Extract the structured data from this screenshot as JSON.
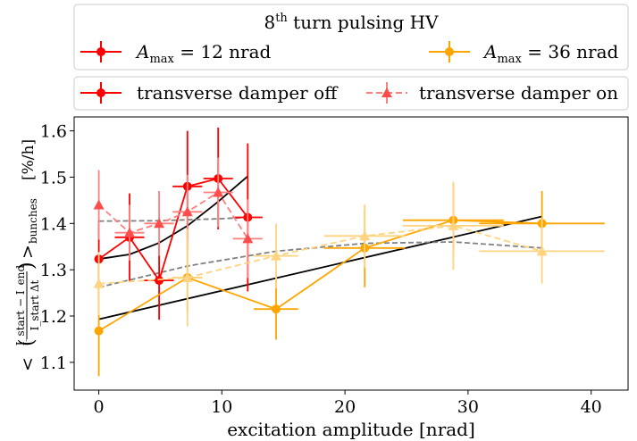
{
  "legend1": {
    "title": "8th turn pulsing HV",
    "title_base": "8",
    "title_sup": "th",
    "title_rest": " turn pulsing HV",
    "entries": [
      {
        "label": "A_max = 12 nrad",
        "sym": "A",
        "sub": "max",
        "rest": " = 12 nrad",
        "color": "#ff0000"
      },
      {
        "label": "A_max = 36 nrad",
        "sym": "A",
        "sub": "max",
        "rest": " = 36 nrad",
        "color": "#ffa500"
      }
    ]
  },
  "legend2": {
    "entries": [
      {
        "label": "transverse damper off",
        "style": "solid-circle"
      },
      {
        "label": "transverse damper on",
        "style": "dashed-triangle"
      }
    ]
  },
  "chart_data": {
    "type": "scatter",
    "xlabel": "excitation amplitude [nrad]",
    "ylabel": "< ((I_start − I_end)/(I_start Δt)) >_bunches [%/h]",
    "ylabel_parts": {
      "lt": "<",
      "num": "I_start − I_end",
      "den": "I_start Δt",
      "gt": ">",
      "sub": "bunches",
      "unit": "[%/h]"
    },
    "xlim": [
      -2,
      43
    ],
    "ylim": [
      1.04,
      1.63
    ],
    "xticks": [
      0,
      10,
      20,
      30,
      40
    ],
    "yticks": [
      1.1,
      1.2,
      1.3,
      1.4,
      1.5,
      1.6
    ],
    "grid": false,
    "colors": {
      "red": "#ff0000",
      "red_light": "#ff7f7f",
      "orange": "#ffa500",
      "orange_light": "#ffd37f",
      "fit_solid": "#000000",
      "fit_dashed": "#808080"
    },
    "series": [
      {
        "name": "A_max = 12 nrad, transverse damper off",
        "color": "#ff0000",
        "marker": "circle",
        "line": "solid",
        "points": [
          {
            "x": 0,
            "y": 1.323,
            "xerr": 0,
            "yerr": 0.085
          },
          {
            "x": 2.5,
            "y": 1.37,
            "xerr": 1.2,
            "yerr": 0.095
          },
          {
            "x": 4.9,
            "y": 1.277,
            "xerr": 1.2,
            "yerr": 0.085
          },
          {
            "x": 7.2,
            "y": 1.48,
            "xerr": 1.2,
            "yerr": 0.12
          },
          {
            "x": 9.7,
            "y": 1.497,
            "xerr": 1.2,
            "yerr": 0.11
          },
          {
            "x": 12.1,
            "y": 1.413,
            "xerr": 1.2,
            "yerr": 0.16
          }
        ]
      },
      {
        "name": "A_max = 12 nrad, transverse damper on",
        "color": "#ff7f7f",
        "marker": "triangle",
        "line": "dashed",
        "points": [
          {
            "x": 0,
            "y": 1.44,
            "xerr": 0,
            "yerr": 0.075
          },
          {
            "x": 2.5,
            "y": 1.38,
            "xerr": 1.2,
            "yerr": 0.06
          },
          {
            "x": 4.9,
            "y": 1.4,
            "xerr": 1.2,
            "yerr": 0.07
          },
          {
            "x": 7.2,
            "y": 1.425,
            "xerr": 1.2,
            "yerr": 0.08
          },
          {
            "x": 9.7,
            "y": 1.467,
            "xerr": 1.2,
            "yerr": 0.075
          },
          {
            "x": 12.1,
            "y": 1.367,
            "xerr": 1.2,
            "yerr": 0.085
          }
        ]
      },
      {
        "name": "A_max = 36 nrad, transverse damper off",
        "color": "#ffa500",
        "marker": "circle",
        "line": "solid",
        "points": [
          {
            "x": 0,
            "y": 1.168,
            "xerr": 0,
            "yerr": 0.098
          },
          {
            "x": 7.2,
            "y": 1.283,
            "xerr": 1.2,
            "yerr": 0.075
          },
          {
            "x": 14.4,
            "y": 1.215,
            "xerr": 1.8,
            "yerr": 0.066
          },
          {
            "x": 21.6,
            "y": 1.347,
            "xerr": 3.3,
            "yerr": 0.085
          },
          {
            "x": 28.8,
            "y": 1.407,
            "xerr": 4.1,
            "yerr": 0.078
          },
          {
            "x": 36,
            "y": 1.4,
            "xerr": 5.1,
            "yerr": 0.07
          }
        ]
      },
      {
        "name": "A_max = 36 nrad, transverse damper on",
        "color": "#ffd37f",
        "marker": "triangle",
        "line": "dashed",
        "points": [
          {
            "x": 0,
            "y": 1.27,
            "xerr": 0,
            "yerr": 0.068
          },
          {
            "x": 7.2,
            "y": 1.283,
            "xerr": 1.2,
            "yerr": 0.105
          },
          {
            "x": 14.4,
            "y": 1.33,
            "xerr": 1.8,
            "yerr": 0.07
          },
          {
            "x": 21.6,
            "y": 1.373,
            "xerr": 3.3,
            "yerr": 0.068
          },
          {
            "x": 28.8,
            "y": 1.395,
            "xerr": 4.1,
            "yerr": 0.095
          },
          {
            "x": 36,
            "y": 1.34,
            "xerr": 5.1,
            "yerr": 0.07
          }
        ]
      }
    ],
    "fits": [
      {
        "name": "fit A_max = 12 nrad, damper off",
        "color": "#000000",
        "style": "solid",
        "x": [
          0,
          2.5,
          4.9,
          7.2,
          9.7,
          12.1
        ],
        "y": [
          1.323,
          1.333,
          1.358,
          1.395,
          1.447,
          1.502
        ]
      },
      {
        "name": "fit A_max = 12 nrad, damper on",
        "color": "#808080",
        "style": "dashed",
        "x": [
          0,
          4.9,
          9.7,
          12.1
        ],
        "y": [
          1.405,
          1.406,
          1.41,
          1.413
        ]
      },
      {
        "name": "fit A_max = 36 nrad, damper off",
        "color": "#000000",
        "style": "solid",
        "x": [
          0,
          36
        ],
        "y": [
          1.193,
          1.415
        ]
      },
      {
        "name": "fit A_max = 36 nrad, damper on",
        "color": "#808080",
        "style": "dashed",
        "x": [
          0,
          7.2,
          14.4,
          21.6,
          28.8,
          36
        ],
        "y": [
          1.262,
          1.308,
          1.34,
          1.357,
          1.36,
          1.347
        ]
      }
    ]
  }
}
